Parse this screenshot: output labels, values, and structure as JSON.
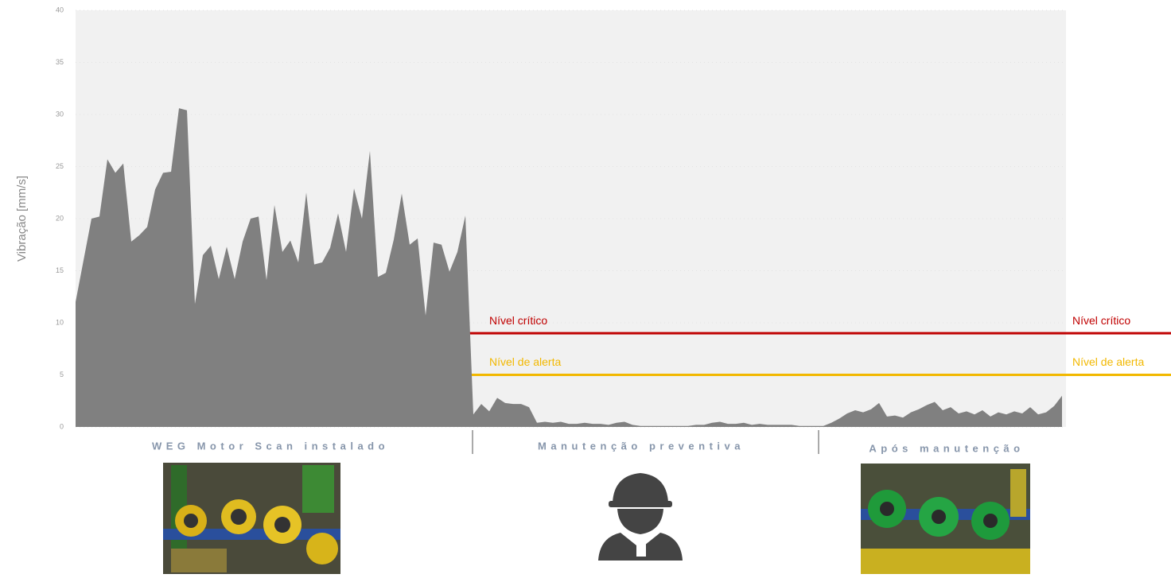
{
  "chart_data": {
    "type": "area",
    "ylabel": "Vibração [mm/s]",
    "color": "#808080",
    "ylim": [
      0,
      40
    ],
    "yticks": [
      0,
      5,
      10,
      15,
      20,
      25,
      30,
      35,
      40
    ],
    "grid": true,
    "values": [
      12,
      16,
      20,
      20.2,
      25.7,
      24.4,
      25.3,
      17.8,
      18.4,
      19.2,
      22.8,
      24.4,
      24.5,
      30.6,
      30.4,
      11.8,
      16.5,
      17.4,
      14.2,
      17.3,
      14.2,
      17.8,
      20,
      20.2,
      14.1,
      21.3,
      16.8,
      17.9,
      15.8,
      22.5,
      15.6,
      15.8,
      17.2,
      20.5,
      16.8,
      22.9,
      20,
      26.5,
      14.4,
      14.8,
      18,
      22.4,
      17.5,
      18.1,
      10.7,
      17.7,
      17.5,
      14.9,
      16.8,
      20.3,
      1.2,
      2.2,
      1.5,
      2.8,
      2.3,
      2.2,
      2.2,
      1.9,
      0.4,
      0.5,
      0.4,
      0.5,
      0.3,
      0.3,
      0.4,
      0.3,
      0.3,
      0.2,
      0.4,
      0.5,
      0.2,
      0.1,
      0.1,
      0.1,
      0.1,
      0.1,
      0.1,
      0.1,
      0.2,
      0.2,
      0.4,
      0.5,
      0.3,
      0.3,
      0.4,
      0.2,
      0.3,
      0.2,
      0.2,
      0.2,
      0.2,
      0.1,
      0.1,
      0.1,
      0.1,
      0.4,
      0.8,
      1.3,
      1.6,
      1.4,
      1.7,
      2.3,
      1.0,
      1.1,
      0.9,
      1.4,
      1.7,
      2.1,
      2.4,
      1.6,
      1.9,
      1.3,
      1.5,
      1.2,
      1.6,
      1.0,
      1.4,
      1.2,
      1.5,
      1.3,
      1.9,
      1.2,
      1.4,
      2.0,
      3.0
    ],
    "thresholds": [
      {
        "name": "Nível crítico",
        "value": 9,
        "color": "#c00000"
      },
      {
        "name": "Nível de alerta",
        "value": 5,
        "color": "#f2b800"
      }
    ],
    "sections": [
      "WEG Motor Scan instalado",
      "Manutenção preventiva",
      "Após manutenção"
    ]
  }
}
